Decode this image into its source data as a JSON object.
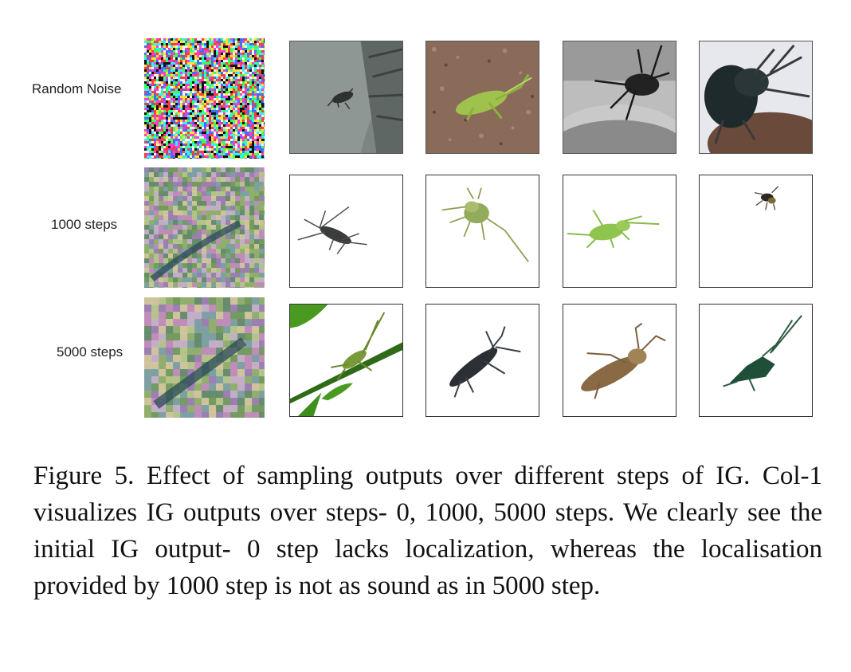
{
  "figure": {
    "row_labels": [
      "Random Noise",
      "1000 steps",
      "5000 steps"
    ],
    "caption": "Figure 5.  Effect of sampling outputs over different steps of IG. Col-1 visualizes IG outputs over steps- 0, 1000, 5000 steps.  We clearly see the initial IG output- 0 step lacks localization, whereas the localisation provided by 1000 step is not as sound as in 5000 step."
  },
  "colors": {
    "ig_noise": [
      "#ff3b3b",
      "#3bff5a",
      "#4a6bff",
      "#ffe03b",
      "#ff3bd6",
      "#35f0ff",
      "#111111",
      "#f4f4f4"
    ],
    "insect_green": "#7fb84a",
    "insect_dark": "#2c3030",
    "insect_brown": "#8a6a45",
    "insect_deep_green": "#1f4f38",
    "leaf_green": "#3f8f1f"
  }
}
